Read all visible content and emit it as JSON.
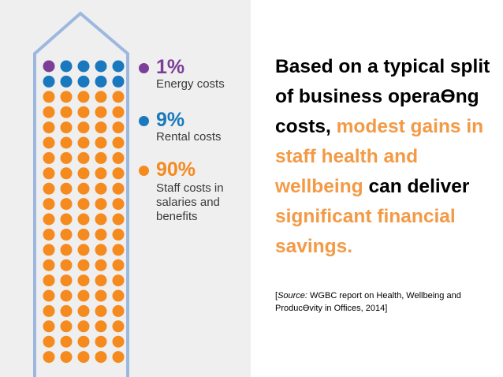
{
  "colors": {
    "purple": "#7b3f98",
    "blue": "#1a78be",
    "orange": "#f58a1f",
    "outline": "#9db8e0",
    "panel": "#efefef",
    "highlight_text": "#f39a46"
  },
  "chart_data": {
    "type": "waffle",
    "total_dots": 100,
    "series": [
      {
        "name": "Energy costs",
        "percent": 1,
        "color": "#7b3f98"
      },
      {
        "name": "Rental costs",
        "percent": 9,
        "color": "#1a78be"
      },
      {
        "name": "Staff costs in salaries and benefits",
        "percent": 90,
        "color": "#f58a1f"
      }
    ]
  },
  "legend": [
    {
      "percent": "1%",
      "label": "Energy costs",
      "color": "#7b3f98"
    },
    {
      "percent": "9%",
      "label": "Rental costs",
      "color": "#1a78be"
    },
    {
      "percent": "90%",
      "label": "Staff costs in salaries and benefits",
      "color": "#f58a1f"
    }
  ],
  "headline": {
    "part1": "Based on a typical split of business operaƟng costs, ",
    "part2": "modest gains in staff health and wellbeing",
    "part3": " can deliver ",
    "part4": "significant financial savings."
  },
  "source": {
    "open": "[",
    "label": "Source:",
    "text": " WGBC report on Health, Wellbeing and ProducƟvity in Offices, 2014]"
  }
}
